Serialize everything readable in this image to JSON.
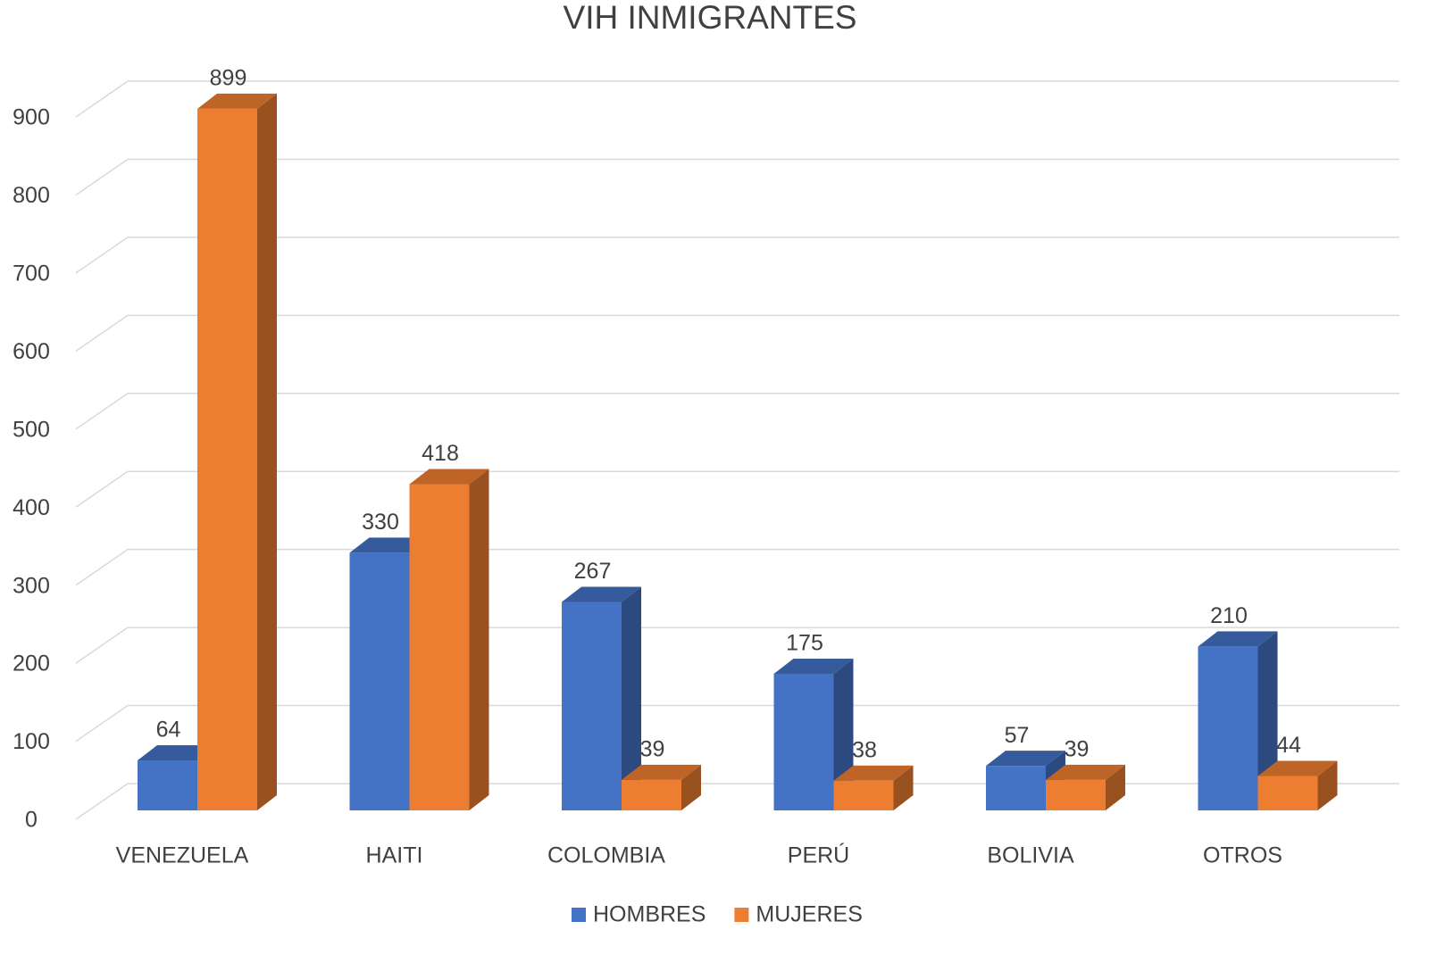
{
  "chart_data": {
    "type": "bar3d",
    "title": "VIH INMIGRANTES",
    "categories": [
      "VENEZUELA",
      "HAITI",
      "COLOMBIA",
      "PERÚ",
      "BOLIVIA",
      "OTROS"
    ],
    "series": [
      {
        "name": "HOMBRES",
        "color": "#4472c4",
        "values": [
          64,
          330,
          267,
          175,
          57,
          210
        ]
      },
      {
        "name": "MUJERES",
        "color": "#ed7d31",
        "values": [
          899,
          418,
          39,
          38,
          39,
          44
        ]
      }
    ],
    "ylim": [
      0,
      900
    ],
    "yticks": [
      0,
      100,
      200,
      300,
      400,
      500,
      600,
      700,
      800,
      900
    ],
    "grid": true,
    "legend": "bottom"
  }
}
